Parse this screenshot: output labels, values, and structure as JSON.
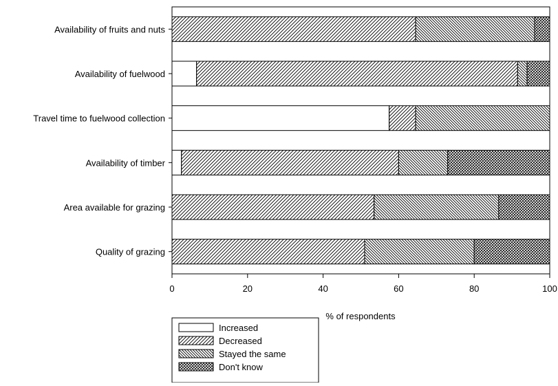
{
  "chart_data": {
    "type": "bar",
    "orientation": "horizontal",
    "stacked": true,
    "title": "",
    "xlabel": "% of respondents",
    "ylabel": "",
    "xlim": [
      0,
      100
    ],
    "xticks": [
      "0",
      "20",
      "40",
      "60",
      "80",
      "100"
    ],
    "grid": false,
    "legend_position": "below-left",
    "categories": [
      "Availability of fruits and nuts",
      "Availability of fuelwood",
      "Travel time to fuelwood collection",
      "Availability of timber",
      "Area available for grazing",
      "Quality of grazing"
    ],
    "series": [
      {
        "name": "Increased",
        "pattern": "blank",
        "values": [
          0,
          6.5,
          57.5,
          2.5,
          0,
          0
        ]
      },
      {
        "name": "Decreased",
        "pattern": "diag-right",
        "values": [
          64.5,
          85.0,
          7.0,
          57.5,
          53.5,
          51.0
        ]
      },
      {
        "name": "Stayed the same",
        "pattern": "diag-left",
        "values": [
          31.5,
          2.5,
          35.5,
          13.0,
          33.0,
          29.0
        ]
      },
      {
        "name": "Don't know",
        "pattern": "crosshatch",
        "values": [
          4.0,
          6.0,
          0,
          27.0,
          13.5,
          20.0
        ]
      }
    ]
  }
}
